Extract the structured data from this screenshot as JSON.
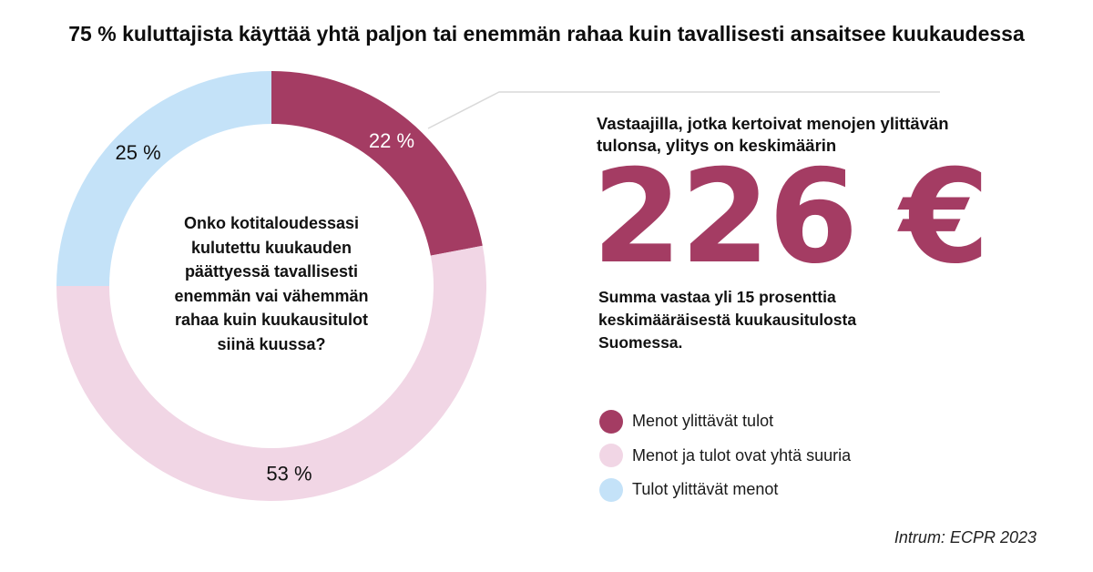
{
  "title": "75 % kuluttajista käyttää yhtä paljon tai enemmän rahaa kuin tavallisesti ansaitsee kuukaudessa",
  "chart_data": {
    "type": "pie",
    "variant": "donut",
    "center_text": "Onko kotitaloudessasi kulutettu kuukauden päättyessä tavallisesti enemmän vai vähemmän rahaa kuin kuukausitulot siinä kuussa?",
    "slices": [
      {
        "name": "Menot ylittävät tulot",
        "value": 22,
        "label": "22 %",
        "color": "#a43c63",
        "label_color": "#ffffff"
      },
      {
        "name": "Menot ja tulot ovat yhtä suuria",
        "value": 53,
        "label": "53 %",
        "color": "#f1d6e5",
        "label_color": "#111111"
      },
      {
        "name": "Tulot ylittävät menot",
        "value": 25,
        "label": "25 %",
        "color": "#c4e2f8",
        "label_color": "#111111"
      }
    ]
  },
  "highlight": {
    "label": "Vastaajilla, jotka kertoivat menojen ylittävän tulonsa, ylitys on keskimäärin",
    "value": "226 €",
    "value_color": "#a43c63",
    "note": "Summa vastaa yli 15 prosenttia keskimääräisestä kuukausitulosta Suomessa.",
    "connector_color": "#d9d9d9"
  },
  "source": "Intrum: ECPR 2023"
}
